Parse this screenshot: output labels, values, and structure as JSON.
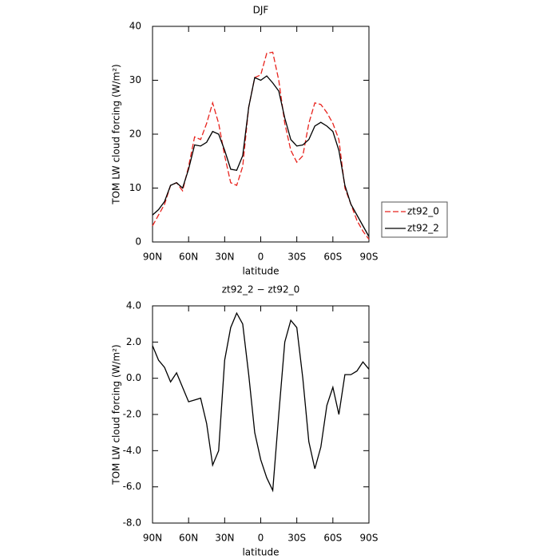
{
  "chart_data": [
    {
      "type": "line",
      "title": "DJF",
      "xlabel": "latitude",
      "ylabel": "TOM LW cloud forcing (W/m²)",
      "x": [
        90,
        85,
        80,
        75,
        70,
        65,
        60,
        55,
        50,
        45,
        40,
        35,
        30,
        25,
        20,
        15,
        10,
        5,
        0,
        -5,
        -10,
        -15,
        -20,
        -25,
        -30,
        -35,
        -40,
        -45,
        -50,
        -55,
        -60,
        -65,
        -70,
        -75,
        -80,
        -85,
        -90
      ],
      "series": [
        {
          "name": "zt92_0",
          "color": "#e8231d",
          "dashed": true,
          "values": [
            3,
            5,
            7,
            10.5,
            11,
            9.5,
            14,
            19.5,
            19,
            22,
            25.8,
            22,
            16,
            11,
            10.5,
            14,
            25,
            30.5,
            31,
            35,
            35.2,
            30,
            22,
            17,
            14.8,
            16,
            22,
            25.8,
            25.5,
            24,
            22,
            19,
            10,
            7,
            4,
            2,
            0.5
          ]
        },
        {
          "name": "zt92_2",
          "color": "#000000",
          "dashed": false,
          "values": [
            5,
            6,
            7.5,
            10.5,
            11,
            10,
            13.5,
            18,
            17.8,
            18.5,
            20.5,
            20,
            17,
            13.5,
            13.3,
            16,
            25,
            30.5,
            30,
            30.8,
            29.5,
            28,
            23,
            19,
            17.8,
            18,
            19,
            21.5,
            22.2,
            21.5,
            20.5,
            17,
            10.5,
            7,
            5,
            3,
            1
          ]
        }
      ],
      "xlim": [
        90,
        -90
      ],
      "xticks": [
        {
          "value": 90,
          "label": "90N"
        },
        {
          "value": 60,
          "label": "60N"
        },
        {
          "value": 30,
          "label": "30N"
        },
        0,
        {
          "value": -30,
          "label": "30S"
        },
        {
          "value": -60,
          "label": "60S"
        },
        {
          "value": -90,
          "label": "90S"
        }
      ],
      "ylim": [
        0,
        40
      ],
      "yticks": [
        0,
        10,
        20,
        30,
        40
      ],
      "legend": "right"
    },
    {
      "type": "line",
      "title": "zt92_2 − zt92_0",
      "xlabel": "latitude",
      "ylabel": "TOM LW cloud forcing (W/m²)",
      "x": [
        90,
        85,
        80,
        75,
        70,
        65,
        60,
        55,
        50,
        45,
        40,
        35,
        30,
        25,
        20,
        15,
        10,
        5,
        0,
        -5,
        -10,
        -15,
        -20,
        -25,
        -30,
        -35,
        -40,
        -45,
        -50,
        -55,
        -60,
        -65,
        -70,
        -75,
        -80,
        -85,
        -90
      ],
      "color": "#000000",
      "values": [
        1.8,
        1.0,
        0.6,
        -0.2,
        0.3,
        -0.5,
        -1.3,
        -1.2,
        -1.1,
        -2.5,
        -4.8,
        -4.0,
        1.0,
        2.8,
        3.6,
        3.0,
        0.2,
        -3.0,
        -4.5,
        -5.5,
        -6.2,
        -2.0,
        2.0,
        3.2,
        2.8,
        0,
        -3.5,
        -5.0,
        -3.8,
        -1.5,
        -0.5,
        -2.0,
        0.2,
        0.2,
        0.4,
        0.9,
        0.5
      ],
      "xlim": [
        90,
        -90
      ],
      "xticks": [
        {
          "value": 90,
          "label": "90N"
        },
        {
          "value": 60,
          "label": "60N"
        },
        {
          "value": 30,
          "label": "30N"
        },
        0,
        {
          "value": -30,
          "label": "30S"
        },
        {
          "value": -60,
          "label": "60S"
        },
        {
          "value": -90,
          "label": "90S"
        }
      ],
      "ylim": [
        -8,
        4
      ],
      "yticks": [
        {
          "value": -8,
          "label": "-8.0"
        },
        {
          "value": -6,
          "label": "-6.0"
        },
        {
          "value": -4,
          "label": "-4.0"
        },
        {
          "value": -2,
          "label": "-2.0"
        },
        {
          "value": 0,
          "label": "0.0"
        },
        {
          "value": 2,
          "label": "2.0"
        },
        {
          "value": 4,
          "label": "4.0"
        }
      ]
    }
  ]
}
